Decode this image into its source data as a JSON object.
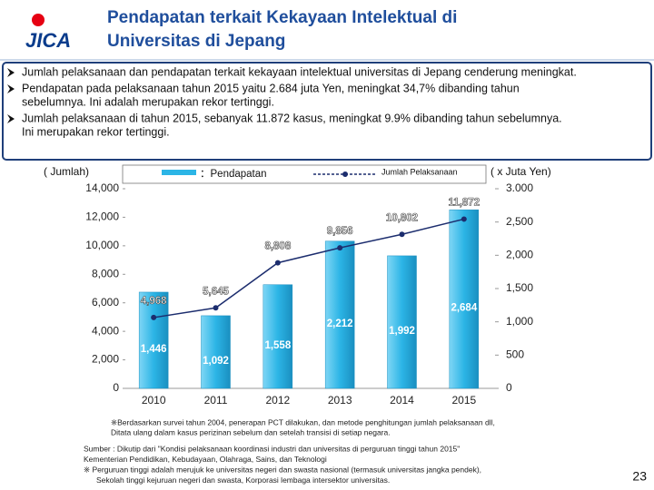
{
  "logo": "JICA",
  "title_lines": [
    "Pendapatan terkait Kekayaan Intelektual di",
    "Universitas di Jepang"
  ],
  "bullets": [
    [
      "Jumlah pelaksanaan dan pendapatan terkait kekayaan intelektual universitas di Jepang cenderung meningkat."
    ],
    [
      "Pendapatan pada pelaksanaan tahun 2015 yaitu 2.684 juta Yen, meningkat 34,7% dibanding tahun",
      "sebelumnya. Ini adalah merupakan rekor tertinggi."
    ],
    [
      "Jumlah pelaksanaan di tahun 2015, sebanyak 11.872 kasus, meningkat 9.9% dibanding tahun sebelumnya.",
      "Ini merupakan rekor tertinggi."
    ]
  ],
  "chart_data": {
    "type": "bar_line",
    "ylabel": "( Jumlah)",
    "y2label": "( x Juta Yen)",
    "categories": [
      "2010",
      "2011",
      "2012",
      "2013",
      "2014",
      "2015"
    ],
    "series": [
      {
        "name": "：Pendapatan",
        "type": "bar",
        "axis": "y2",
        "color": "#2cb5e6",
        "values": [
          1446,
          1092,
          1558,
          2212,
          1992,
          2684
        ],
        "value_labels": [
          "1,446",
          "1,092",
          "1,558",
          "2,212",
          "1,992",
          "2,684"
        ]
      },
      {
        "name": "Jumlah Pelaksanaan",
        "type": "line",
        "axis": "y",
        "color": "#1c2d6e",
        "values": [
          4968,
          5645,
          8808,
          9856,
          10802,
          11872
        ],
        "value_labels": [
          "4,968",
          "5,645",
          "8,808",
          "9,856",
          "10,802",
          "11,872"
        ]
      }
    ],
    "ylim": [
      0,
      14000
    ],
    "yticks": [
      0,
      {
        "value": 2000,
        "label": "2,000"
      },
      {
        "value": 4000,
        "label": "4,000"
      },
      {
        "value": 6000,
        "label": "6,000"
      },
      {
        "value": 8000,
        "label": "8,000"
      },
      {
        "value": 10000,
        "label": "10,000"
      },
      {
        "value": 12000,
        "label": "12,000"
      },
      {
        "value": 14000,
        "label": "14,000"
      }
    ],
    "y2lim": [
      0,
      3000
    ],
    "y2ticks": [
      0,
      500,
      {
        "value": 1000,
        "label": "1,000"
      },
      {
        "value": 1500,
        "label": "1,500"
      },
      {
        "value": 2000,
        "label": "2,000"
      },
      {
        "value": 2500,
        "label": "2,500"
      },
      {
        "value": 3000,
        "label": "3.000"
      }
    ]
  },
  "note_lines": [
    "※Berdasarkan survei tahun 2004, penerapan PCT dilakukan, dan metode penghitungan jumlah pelaksanaan dll,",
    "Ditata ulang dalam kasus perizinan sebelum dan setelah transisi di setiap negara."
  ],
  "source_lines": [
    "Sumber : Dikutip dari \"Kondisi pelaksanaan koordinasi industri dan universitas di perguruan tinggi tahun 2015\"",
    "Kementerian Pendidikan, Kebudayaan, Olahraga, Sains, dan Teknologi",
    "※ Perguruan tinggi adalah merujuk ke universitas negeri dan swasta nasional (termasuk universitas jangka pendek),",
    "Sekolah tinggi kejuruan negeri dan swasta, Korporasi lembaga intersektor universitas."
  ],
  "page_number": "23"
}
